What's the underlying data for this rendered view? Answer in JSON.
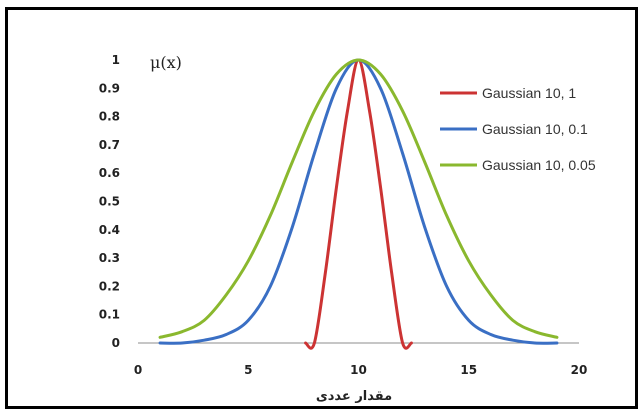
{
  "chart_data": {
    "type": "line",
    "title": "",
    "ylabel": "μ(x)",
    "xlabel": "مقدار عددی",
    "xlim": [
      0,
      20
    ],
    "ylim": [
      0,
      1
    ],
    "x_ticks": [
      "0",
      "5",
      "10",
      "15",
      "20"
    ],
    "y_ticks": [
      "0",
      "0.1",
      "0.2",
      "0.3",
      "0.4",
      "0.5",
      "0.6",
      "0.7",
      "0.8",
      "0.9",
      "1"
    ],
    "grid": false,
    "legend_position": "right",
    "series": [
      {
        "name": "Gaussian 10, 1",
        "color": "#cc3333",
        "x": [
          7.6,
          8.0,
          8.5,
          9.0,
          9.5,
          10.0,
          10.5,
          11.0,
          11.5,
          12.0,
          12.4
        ],
        "y": [
          0.0,
          0.0,
          0.25,
          0.55,
          0.82,
          1.0,
          0.82,
          0.55,
          0.25,
          0.0,
          0.0
        ]
      },
      {
        "name": "Gaussian 10, 0.1",
        "color": "#3a6fc4",
        "x": [
          1,
          2,
          3,
          4,
          5,
          6,
          7,
          8,
          9,
          10,
          11,
          12,
          13,
          14,
          15,
          16,
          17,
          18,
          19
        ],
        "y": [
          0.0,
          0.0,
          0.01,
          0.03,
          0.08,
          0.2,
          0.41,
          0.67,
          0.9,
          1.0,
          0.9,
          0.67,
          0.41,
          0.2,
          0.08,
          0.03,
          0.01,
          0.0,
          0.0
        ]
      },
      {
        "name": "Gaussian 10, 0.05",
        "color": "#8ab82e",
        "x": [
          1,
          2,
          3,
          4,
          5,
          6,
          7,
          8,
          9,
          10,
          11,
          12,
          13,
          14,
          15,
          16,
          17,
          18,
          19
        ],
        "y": [
          0.02,
          0.04,
          0.08,
          0.17,
          0.29,
          0.45,
          0.64,
          0.82,
          0.95,
          1.0,
          0.95,
          0.82,
          0.64,
          0.45,
          0.29,
          0.17,
          0.08,
          0.04,
          0.02
        ]
      }
    ]
  }
}
